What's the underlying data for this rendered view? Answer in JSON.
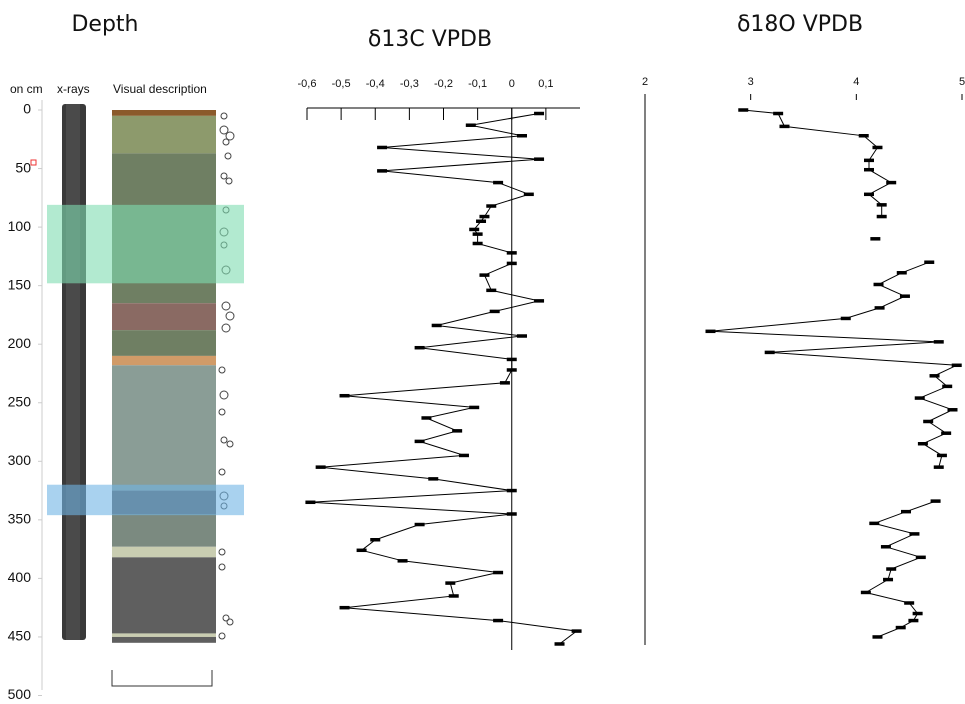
{
  "chart_data": [
    {
      "type": "log",
      "title": "Depth",
      "column_labels": [
        "on cm",
        "x-rays",
        "Visual description"
      ],
      "ylim": [
        0,
        500
      ],
      "yticks": [
        0,
        50,
        100,
        150,
        200,
        250,
        300,
        350,
        400,
        450,
        500
      ],
      "layers": [
        {
          "top": 0,
          "bottom": 5,
          "color": "#8b5a2b"
        },
        {
          "top": 5,
          "bottom": 37,
          "color": "#8d9a6c"
        },
        {
          "top": 37,
          "bottom": 165,
          "color": "#6f7f63"
        },
        {
          "top": 165,
          "bottom": 188,
          "color": "#8a6a63"
        },
        {
          "top": 188,
          "bottom": 210,
          "color": "#6f7f63"
        },
        {
          "top": 210,
          "bottom": 218,
          "color": "#d19b68"
        },
        {
          "top": 218,
          "bottom": 325,
          "color": "#8a9d96"
        },
        {
          "top": 325,
          "bottom": 345,
          "color": "#5b5b5b"
        },
        {
          "top": 345,
          "bottom": 373,
          "color": "#7b8a80"
        },
        {
          "top": 373,
          "bottom": 382,
          "color": "#c9cdb1"
        },
        {
          "top": 382,
          "bottom": 447,
          "color": "#5f5f5f"
        },
        {
          "top": 447,
          "bottom": 450,
          "color": "#c9cdb1"
        },
        {
          "top": 450,
          "bottom": 455,
          "color": "#5f5f5f"
        }
      ],
      "highlights": [
        {
          "top": 81,
          "bottom": 148,
          "color": "#7fdcb0"
        },
        {
          "top": 320,
          "bottom": 346,
          "color": "#6fb4e4"
        }
      ]
    },
    {
      "type": "line",
      "title": "δ13C VPDB",
      "color": "#000000",
      "xlim": [
        -0.6,
        0.2
      ],
      "xticks": [
        {
          "value": -0.6,
          "label": "-0,6"
        },
        {
          "value": -0.5,
          "label": "-0,5"
        },
        {
          "value": -0.4,
          "label": "-0,4"
        },
        {
          "value": -0.3,
          "label": "-0,3"
        },
        {
          "value": -0.2,
          "label": "-0,2"
        },
        {
          "value": -0.1,
          "label": "-0,1"
        },
        0,
        {
          "value": 0.1,
          "label": "0,1"
        }
      ],
      "depth": [
        3,
        13,
        22,
        32,
        42,
        52,
        62,
        72,
        82,
        91,
        95,
        102,
        106,
        114,
        122,
        131,
        141,
        154,
        163,
        172,
        184,
        193,
        203,
        213,
        222,
        233,
        244,
        254,
        263,
        274,
        283,
        295,
        305,
        315,
        325,
        335,
        345,
        354,
        367,
        376,
        385,
        395,
        404,
        415,
        425,
        436,
        445,
        456
      ],
      "values": [
        0.08,
        -0.12,
        0.03,
        -0.38,
        0.08,
        -0.38,
        -0.04,
        0.05,
        -0.06,
        -0.08,
        -0.09,
        -0.11,
        -0.1,
        -0.1,
        0,
        0,
        -0.08,
        -0.06,
        0.08,
        -0.05,
        -0.22,
        0.03,
        -0.27,
        0,
        0,
        -0.02,
        -0.49,
        -0.11,
        -0.25,
        -0.16,
        -0.27,
        -0.14,
        -0.56,
        -0.23,
        0,
        -0.59,
        0,
        -0.27,
        -0.4,
        -0.44,
        -0.32,
        -0.04,
        -0.18,
        -0.17,
        -0.49,
        -0.04,
        0.19,
        0.14
      ]
    },
    {
      "type": "line",
      "title": "δ18O VPDB",
      "color": "#000000",
      "xlim": [
        2,
        5
      ],
      "xticks": [
        2,
        3,
        4,
        5
      ],
      "depth": [
        0,
        3,
        14,
        22,
        32,
        43,
        51,
        62,
        72,
        81,
        91,
        null,
        110,
        null,
        130,
        139,
        149,
        159,
        169,
        178,
        189,
        198,
        207,
        218,
        227,
        236,
        246,
        256,
        266,
        276,
        285,
        295,
        305,
        null,
        334,
        343,
        353,
        362,
        373,
        382,
        392,
        401,
        412,
        421,
        430,
        436,
        442,
        450
      ],
      "values": [
        2.93,
        3.26,
        3.32,
        4.07,
        4.2,
        4.12,
        4.12,
        4.33,
        4.12,
        4.24,
        4.24,
        null,
        4.18,
        null,
        4.69,
        4.43,
        4.21,
        4.46,
        4.22,
        3.9,
        2.62,
        4.78,
        3.18,
        4.95,
        4.74,
        4.86,
        4.6,
        4.91,
        4.68,
        4.85,
        4.63,
        4.81,
        4.78,
        null,
        4.75,
        4.47,
        4.17,
        4.55,
        4.28,
        4.61,
        4.33,
        4.3,
        4.09,
        4.5,
        4.58,
        4.54,
        4.42,
        4.2
      ]
    }
  ]
}
